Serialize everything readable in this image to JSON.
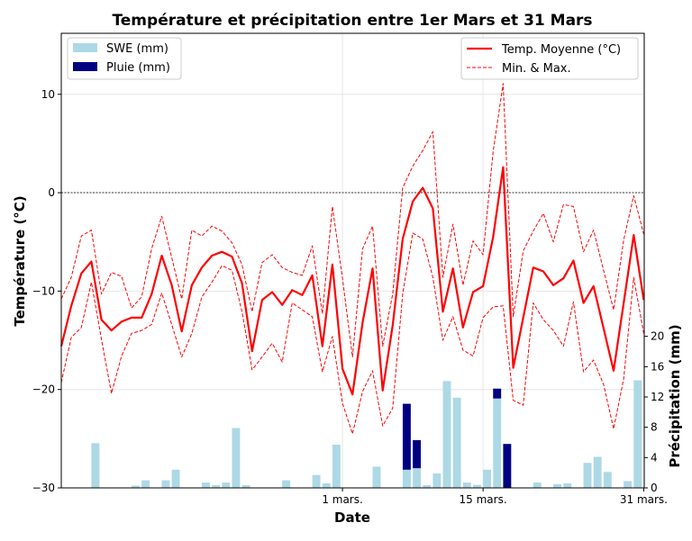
{
  "chart_data": {
    "type": "line+bar",
    "title": "Température et précipitation entre 1er Mars et 31 Mars",
    "xlabel": "Date",
    "ylabel": "Température (°C)",
    "ylabel_right": "Précipitation (mm)",
    "x_unit": "days relative to 1 mars",
    "xlim": [
      -28,
      30.05
    ],
    "ylim": [
      -30,
      16.2
    ],
    "ylim_right": [
      0,
      60
    ],
    "xticks": [
      {
        "value": 0,
        "label": "1 mars."
      },
      {
        "value": 14,
        "label": "15 mars."
      },
      {
        "value": 30,
        "label": "31 mars."
      }
    ],
    "yticks": [
      -30,
      -20,
      -10,
      0,
      10
    ],
    "yticks_right": [
      0,
      4,
      8,
      12,
      16,
      20
    ],
    "grid": true,
    "x": [
      -28,
      -27,
      -26,
      -25,
      -24,
      -23,
      -22,
      -21,
      -20,
      -19,
      -18,
      -17,
      -16,
      -15,
      -14,
      -13,
      -12,
      -11,
      -10,
      -9,
      -8,
      -7,
      -6,
      -5,
      -4,
      -3,
      -2,
      -1,
      0,
      1,
      2,
      3,
      4,
      5,
      6,
      7,
      8,
      9,
      10,
      11,
      12,
      13,
      14,
      15,
      16,
      17,
      18,
      19,
      20,
      21,
      22,
      23,
      24,
      25,
      26,
      27,
      28,
      29,
      30
    ],
    "series": [
      {
        "name": "Temp. Moyenne (°C)",
        "style": "solid",
        "color": "#ff0000",
        "values": [
          -15.6,
          -11.5,
          -8.2,
          -7.0,
          -12.9,
          -14.0,
          -13.1,
          -12.7,
          -12.7,
          -10.3,
          -6.4,
          -9.4,
          -14.1,
          -9.4,
          -7.6,
          -6.4,
          -6.0,
          -6.5,
          -9.2,
          -16.1,
          -10.9,
          -10.1,
          -11.4,
          -9.9,
          -10.4,
          -8.4,
          -15.6,
          -7.3,
          -17.9,
          -20.5,
          -13.2,
          -7.7,
          -20.1,
          -13.5,
          -4.7,
          -0.9,
          0.5,
          -1.6,
          -12.1,
          -7.7,
          -13.7,
          -10.1,
          -9.5,
          -4.5,
          2.6,
          -17.8,
          -12.7,
          -7.6,
          -8.0,
          -9.4,
          -8.7,
          -6.9,
          -11.2,
          -9.5,
          -13.8,
          -18.1,
          -11.2,
          -4.3,
          -10.9
        ]
      },
      {
        "name": "Max",
        "style": "dashed",
        "color": "#ff0000",
        "values": [
          -10.8,
          -8.6,
          -4.4,
          -3.8,
          -10.3,
          -8.1,
          -8.5,
          -11.7,
          -10.6,
          -5.7,
          -2.4,
          -6.6,
          -10.8,
          -3.8,
          -4.4,
          -3.4,
          -3.9,
          -5.1,
          -7.3,
          -12.1,
          -7.1,
          -6.3,
          -7.6,
          -8.1,
          -8.4,
          -5.4,
          -12.3,
          -1.4,
          -8.7,
          -16.7,
          -5.7,
          -3.4,
          -15.6,
          -10.3,
          0.5,
          2.7,
          4.3,
          6.2,
          -8.6,
          -3.2,
          -9.4,
          -4.9,
          -6.3,
          4.2,
          11.1,
          -12.6,
          -5.9,
          -3.9,
          -2.1,
          -5.0,
          -1.2,
          -1.4,
          -6.0,
          -3.8,
          -7.9,
          -11.9,
          -4.8,
          -0.3,
          -4.2
        ]
      },
      {
        "name": "Min",
        "style": "dashed",
        "color": "#ff0000",
        "values": [
          -19.3,
          -14.7,
          -13.7,
          -9.1,
          -14.9,
          -20.4,
          -16.6,
          -14.3,
          -14.0,
          -13.4,
          -10.2,
          -13.4,
          -16.7,
          -14.3,
          -10.6,
          -9.1,
          -7.4,
          -7.9,
          -12.1,
          -18.0,
          -16.7,
          -15.3,
          -17.2,
          -11.2,
          -11.9,
          -12.6,
          -18.2,
          -14.6,
          -21.4,
          -24.5,
          -20.2,
          -18.1,
          -23.7,
          -21.9,
          -10.3,
          -4.1,
          -4.7,
          -8.6,
          -15.0,
          -12.6,
          -16.0,
          -16.6,
          -12.7,
          -11.6,
          -11.5,
          -21.1,
          -21.6,
          -11.2,
          -12.9,
          -14.0,
          -15.6,
          -11.1,
          -18.2,
          -17.0,
          -19.5,
          -24.0,
          -18.9,
          -8.6,
          -14.3
        ]
      }
    ],
    "bars": {
      "days": [
        -24,
        -20,
        -19,
        -17,
        -16,
        -13,
        -12,
        -11,
        -10,
        -9,
        -5,
        -2,
        -1,
        0,
        4,
        7,
        8,
        9,
        10,
        11,
        12,
        13,
        14,
        15,
        16,
        17,
        20,
        22,
        23,
        25,
        26,
        27,
        29,
        30
      ],
      "swe": [
        5.9,
        0.3,
        1.0,
        1.0,
        2.4,
        0.7,
        0.35,
        0.7,
        7.9,
        0.35,
        1.0,
        1.7,
        0.6,
        5.7,
        2.8,
        2.4,
        2.6,
        0.35,
        1.9,
        14.1,
        11.9,
        0.7,
        0.4,
        2.4,
        11.8,
        0,
        0.7,
        0.5,
        0.6,
        3.3,
        4.1,
        2.1,
        0.9,
        14.2
      ],
      "rain": [
        0,
        0,
        0,
        0,
        0,
        0,
        0,
        0,
        0,
        0,
        0,
        0,
        0,
        0,
        0,
        8.7,
        3.7,
        0,
        0,
        0,
        0,
        0,
        0,
        0,
        1.3,
        5.8,
        0,
        0,
        0,
        0,
        0,
        0,
        0,
        0
      ]
    },
    "legend_left": {
      "placement": "top-left",
      "entries": [
        {
          "label": "SWE (mm)",
          "color": "#add8e6"
        },
        {
          "label": "Pluie (mm)",
          "color": "#000080"
        }
      ]
    },
    "legend_right": {
      "placement": "top-right",
      "entries": [
        {
          "label": "Temp. Moyenne (°C)",
          "style": "solid"
        },
        {
          "label": "Min. & Max.",
          "style": "dashed"
        }
      ]
    }
  }
}
